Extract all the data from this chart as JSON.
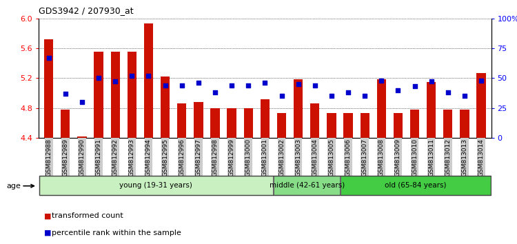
{
  "title": "GDS3942 / 207930_at",
  "samples": [
    "GSM812988",
    "GSM812989",
    "GSM812990",
    "GSM812991",
    "GSM812992",
    "GSM812993",
    "GSM812994",
    "GSM812995",
    "GSM812996",
    "GSM812997",
    "GSM812998",
    "GSM812999",
    "GSM813000",
    "GSM813001",
    "GSM813002",
    "GSM813003",
    "GSM813004",
    "GSM813005",
    "GSM813006",
    "GSM813007",
    "GSM813008",
    "GSM813009",
    "GSM813010",
    "GSM813011",
    "GSM813012",
    "GSM813013",
    "GSM813014"
  ],
  "bar_values": [
    5.72,
    4.78,
    4.42,
    5.55,
    5.55,
    5.55,
    5.93,
    5.22,
    4.86,
    4.88,
    4.8,
    4.8,
    4.8,
    4.92,
    4.73,
    5.18,
    4.86,
    4.73,
    4.73,
    4.73,
    5.18,
    4.73,
    4.78,
    5.15,
    4.78,
    4.78,
    5.27
  ],
  "percentile_values": [
    67,
    37,
    30,
    50,
    47,
    52,
    52,
    44,
    44,
    46,
    38,
    44,
    44,
    46,
    35,
    45,
    44,
    35,
    38,
    35,
    48,
    40,
    43,
    47,
    38,
    35,
    48
  ],
  "ylim_left": [
    4.4,
    6.0
  ],
  "ylim_right": [
    0,
    100
  ],
  "yticks_left": [
    4.4,
    4.8,
    5.2,
    5.6,
    6.0
  ],
  "yticks_right": [
    0,
    25,
    50,
    75,
    100
  ],
  "ytick_labels_right": [
    "0",
    "25",
    "50",
    "75",
    "100%"
  ],
  "bar_color": "#cc1100",
  "square_color": "#0000cc",
  "groups": [
    {
      "label": "young (19-31 years)",
      "start": 0,
      "end": 14,
      "color": "#c8f0c0"
    },
    {
      "label": "middle (42-61 years)",
      "start": 14,
      "end": 18,
      "color": "#88dd88"
    },
    {
      "label": "old (65-84 years)",
      "start": 18,
      "end": 27,
      "color": "#44cc44"
    }
  ],
  "age_label": "age",
  "legend_red": "transformed count",
  "legend_blue": "percentile rank within the sample",
  "tick_label_bg": "#cccccc",
  "background_color": "#ffffff"
}
